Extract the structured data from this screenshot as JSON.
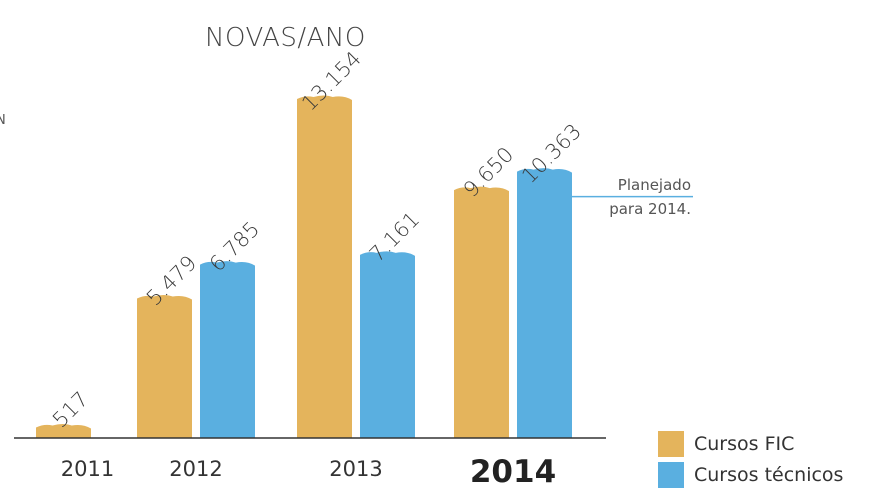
{
  "title": "NOVAS/ANO",
  "side_fragment": "N",
  "colors": {
    "fic": "#e4b45c",
    "tecnicos": "#5aafe0",
    "axis": "#333333",
    "planned_line": "#5aafe0"
  },
  "chart_data": {
    "type": "bar",
    "title": "NOVAS/ANO",
    "categories": [
      "2011",
      "2012",
      "2013",
      "2014"
    ],
    "highlight_category": "2014",
    "series": [
      {
        "name": "Cursos FIC",
        "values": [
          517,
          5479,
          13154,
          9650
        ],
        "labels": [
          "517",
          "5.479",
          "13.154",
          "9.650"
        ]
      },
      {
        "name": "Cursos técnicos",
        "values": [
          null,
          6785,
          7161,
          10363
        ],
        "labels": [
          "",
          "6.785",
          "7.161",
          "10.363"
        ]
      }
    ],
    "ylim": [
      0,
      14000
    ],
    "grid": false,
    "legend_position": "bottom-right",
    "annotation": {
      "lines": [
        "Planejado",
        "para 2014."
      ]
    }
  },
  "legend": [
    {
      "label": "Cursos FIC",
      "color": "#e4b45c"
    },
    {
      "label": "Cursos técnicos",
      "color": "#5aafe0"
    }
  ]
}
